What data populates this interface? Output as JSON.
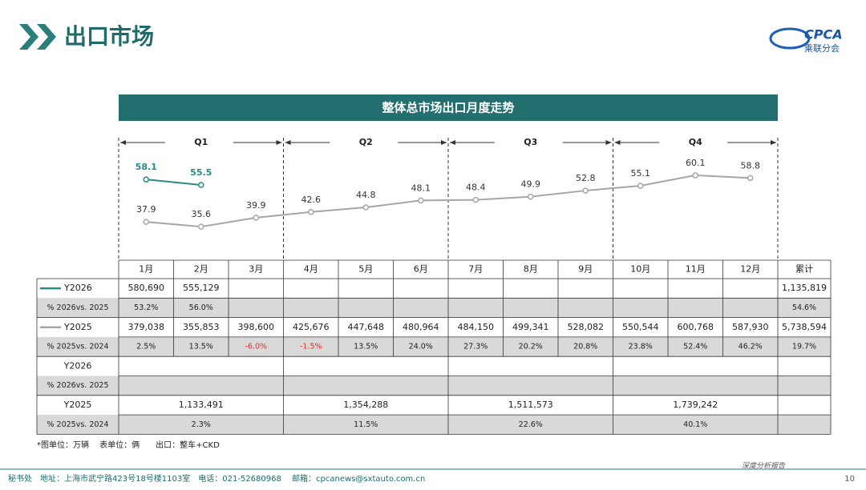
{
  "header": {
    "title": "出口市场",
    "logo": "CPCA",
    "logo_sub": "乘联分会"
  },
  "chart_data": {
    "type": "line",
    "title": "整体总市场出口月度走势",
    "quarters": [
      "Q1",
      "Q2",
      "Q3",
      "Q4"
    ],
    "categories": [
      "1月",
      "2月",
      "3月",
      "4月",
      "5月",
      "6月",
      "7月",
      "8月",
      "9月",
      "10月",
      "11月",
      "12月"
    ],
    "series": [
      {
        "name": "Y2026",
        "color": "#2a8a86",
        "values": [
          58.1,
          55.5,
          null,
          null,
          null,
          null,
          null,
          null,
          null,
          null,
          null,
          null
        ]
      },
      {
        "name": "Y2025",
        "color": "#a6a6a6",
        "values": [
          37.9,
          35.6,
          39.9,
          42.6,
          44.8,
          48.1,
          48.4,
          49.9,
          52.8,
          55.1,
          60.1,
          58.8
        ]
      }
    ],
    "ylim": [
      20,
      70
    ]
  },
  "table": {
    "total_label": "累计",
    "monthly_rows": [
      {
        "label": "Y2026",
        "cells": [
          "580,690",
          "555,129",
          null,
          null,
          null,
          null,
          null,
          null,
          null,
          null,
          null,
          null,
          "1,135,819"
        ]
      },
      {
        "label": "% 2026vs. 2025",
        "cells": [
          "53.2%",
          "56.0%",
          null,
          null,
          null,
          null,
          null,
          null,
          null,
          null,
          null,
          null,
          "54.6%"
        ]
      },
      {
        "label": "Y2025",
        "cells": [
          "379,038",
          "355,853",
          "398,600",
          "425,676",
          "447,648",
          "480,964",
          "484,150",
          "499,341",
          "528,082",
          "550,544",
          "600,768",
          "587,930",
          "5,738,594"
        ]
      },
      {
        "label": "% 2025vs. 2024",
        "cells": [
          "2.5%",
          "13.5%",
          "-6.0%",
          "-1.5%",
          "13.5%",
          "24.0%",
          "27.3%",
          "20.2%",
          "20.8%",
          "23.8%",
          "52.4%",
          "46.2%",
          "19.7%"
        ]
      }
    ],
    "quarterly_rows": [
      {
        "label": "Y2026",
        "cells": [
          null,
          null,
          null,
          null
        ]
      },
      {
        "label": "% 2026vs. 2025",
        "cells": [
          null,
          null,
          null,
          null
        ]
      },
      {
        "label": "Y2025",
        "cells": [
          "1,133,491",
          "1,354,288",
          "1,511,573",
          "1,739,242"
        ]
      },
      {
        "label": "% 2025vs. 2024",
        "cells": [
          "2.3%",
          "11.5%",
          "22.6%",
          "40.1%"
        ]
      }
    ]
  },
  "footnote": "*图单位：万辆　 表单位：俩　　出口：整车+CKD",
  "footer": {
    "address": "秘书处　地址：上海市武宁路423号18号楼1103室　电话：021-52680968　 邮箱：cpcanews@sxtauto.com.cn",
    "report": "深度分析报告",
    "page": "10"
  }
}
